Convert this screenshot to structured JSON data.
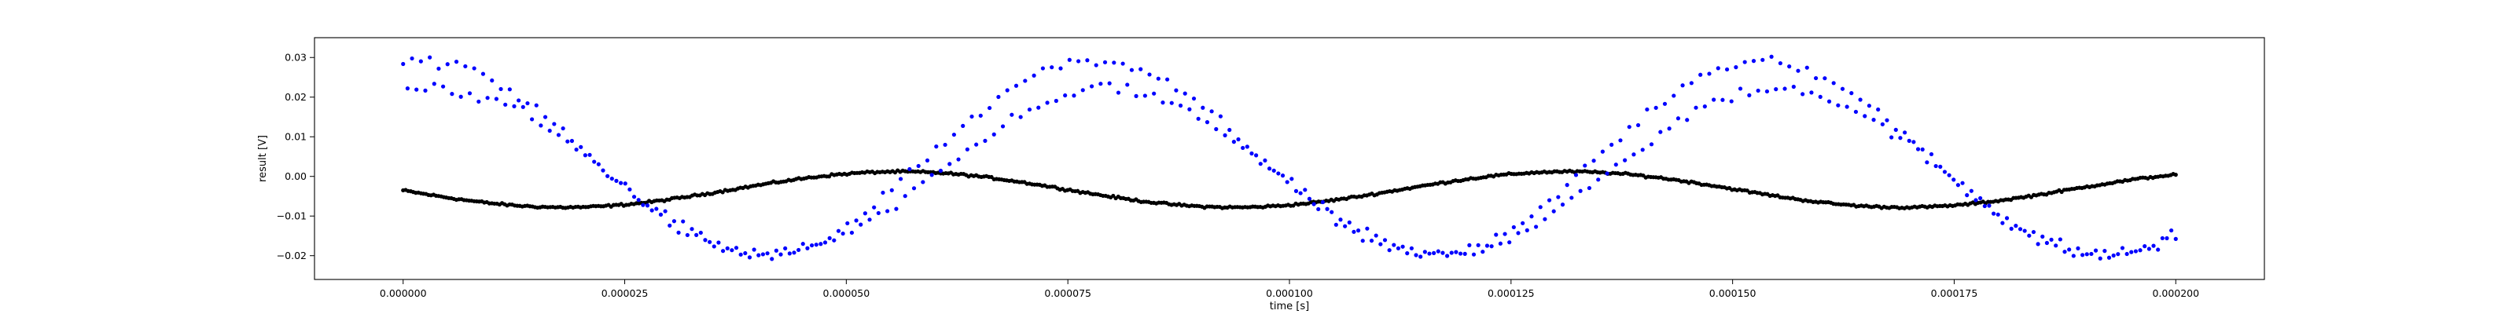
{
  "chart_data": {
    "type": "scatter",
    "title": "",
    "xlabel": "time [s]",
    "ylabel": "result [V]",
    "xlim": [
      -1e-05,
      0.00021
    ],
    "ylim": [
      -0.026,
      0.035
    ],
    "grid": false,
    "legend": "none",
    "x_ticks": [
      0,
      2.5e-05,
      5e-05,
      7.5e-05,
      0.0001,
      0.000125,
      0.00015,
      0.000175,
      0.0002
    ],
    "x_tick_labels": [
      "0.000000",
      "0.000025",
      "0.000050",
      "0.000075",
      "0.000100",
      "0.000125",
      "0.000150",
      "0.000175",
      "0.000200"
    ],
    "y_ticks": [
      -0.02,
      -0.01,
      0.0,
      0.01,
      0.02,
      0.03
    ],
    "y_tick_labels": [
      "−0.02",
      "−0.01",
      "0.00",
      "0.01",
      "0.02",
      "0.03"
    ],
    "series": [
      {
        "color": "#0000ff",
        "marker": "dot",
        "x_range": [
          0,
          0.0002
        ],
        "points": 400,
        "traces": [
          {
            "mean": 0.0045,
            "amplitude": 0.0245,
            "period_s": 7.55e-05,
            "phase_peak_s": 2.5e-06
          },
          {
            "mean": 0.0012,
            "amplitude": 0.0208,
            "period_s": 7.55e-05,
            "phase_peak_s": 4e-06
          }
        ],
        "noise": 0.002
      },
      {
        "color": "#000000",
        "marker": "dot",
        "x_range": [
          0,
          0.0002
        ],
        "points": 700,
        "mean": -0.0033,
        "amplitude": 0.0045,
        "period_s": 7.55e-05,
        "phase_peak_s": 5.6e-05,
        "noise": 0.0004
      }
    ]
  }
}
